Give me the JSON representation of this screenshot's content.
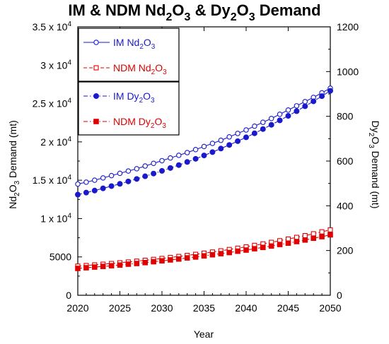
{
  "chart_data": {
    "type": "line",
    "title": {
      "parts": [
        {
          "t": "IM & NDM Nd"
        },
        {
          "t": "2",
          "sub": true
        },
        {
          "t": "O"
        },
        {
          "t": "3",
          "sub": true
        },
        {
          "t": " & Dy"
        },
        {
          "t": "2",
          "sub": true
        },
        {
          "t": "O"
        },
        {
          "t": "3",
          "sub": true
        },
        {
          "t": " Demand"
        }
      ]
    },
    "xlabel": "Year",
    "ylabel": {
      "parts": [
        {
          "t": "Nd"
        },
        {
          "t": "2",
          "sub": true
        },
        {
          "t": "O"
        },
        {
          "t": "3",
          "sub": true
        },
        {
          "t": " Demand (mt)"
        }
      ]
    },
    "y2label": {
      "parts": [
        {
          "t": "Dy"
        },
        {
          "t": "2",
          "sub": true
        },
        {
          "t": "O"
        },
        {
          "t": "3",
          "sub": true
        },
        {
          "t": " Demand (mt)"
        }
      ]
    },
    "xlim": [
      2020,
      2050
    ],
    "ylim": [
      0,
      35000
    ],
    "y2lim": [
      0,
      1200
    ],
    "xticks": [
      "2020",
      "2025",
      "2030",
      "2035",
      "2040",
      "2045",
      "2050"
    ],
    "yticks": [
      {
        "parts": [
          {
            "t": "0"
          }
        ]
      },
      {
        "parts": [
          {
            "t": "5000"
          }
        ]
      },
      {
        "parts": [
          {
            "t": "1 x 10"
          },
          {
            "t": "4",
            "sup": true
          }
        ]
      },
      {
        "parts": [
          {
            "t": "1.5 x 10"
          },
          {
            "t": "4",
            "sup": true
          }
        ]
      },
      {
        "parts": [
          {
            "t": "2 x 10"
          },
          {
            "t": "4",
            "sup": true
          }
        ]
      },
      {
        "parts": [
          {
            "t": "2.5 x 10"
          },
          {
            "t": "4",
            "sup": true
          }
        ]
      },
      {
        "parts": [
          {
            "t": "3 x 10"
          },
          {
            "t": "4",
            "sup": true
          }
        ]
      },
      {
        "parts": [
          {
            "t": "3.5 x 10"
          },
          {
            "t": "4",
            "sup": true
          }
        ]
      }
    ],
    "y2ticks": [
      "0",
      "200",
      "400",
      "600",
      "800",
      "1000",
      "1200"
    ],
    "legend_placement": "top-left",
    "series": [
      {
        "name": {
          "parts": [
            {
              "t": "IM Nd"
            },
            {
              "t": "2",
              "sub": true
            },
            {
              "t": "O"
            },
            {
              "t": "3",
              "sub": true
            }
          ]
        },
        "axis": "left",
        "color": "#1a1acc",
        "marker": "open-circle",
        "line": "solid",
        "x_start": 2020,
        "x_step": 1,
        "values": [
          14500,
          14750,
          15000,
          15300,
          15600,
          15900,
          16200,
          16500,
          16850,
          17200,
          17550,
          17900,
          18250,
          18600,
          19000,
          19400,
          19800,
          20200,
          20650,
          21100,
          21550,
          22050,
          22550,
          23050,
          23600,
          24150,
          24700,
          25250,
          25800,
          26400,
          27000
        ]
      },
      {
        "name": {
          "parts": [
            {
              "t": "NDM Nd"
            },
            {
              "t": "2",
              "sub": true
            },
            {
              "t": "O"
            },
            {
              "t": "3",
              "sub": true
            }
          ]
        },
        "axis": "left",
        "color": "#e00000",
        "marker": "open-square",
        "line": "dashed",
        "x_start": 2020,
        "x_step": 1,
        "values": [
          3800,
          3880,
          3960,
          4050,
          4140,
          4240,
          4340,
          4450,
          4560,
          4680,
          4800,
          4930,
          5060,
          5200,
          5340,
          5490,
          5640,
          5800,
          5970,
          6140,
          6320,
          6510,
          6700,
          6900,
          7110,
          7330,
          7550,
          7780,
          8020,
          8270,
          8530
        ]
      },
      {
        "name": {
          "parts": [
            {
              "t": "IM Dy"
            },
            {
              "t": "2",
              "sub": true
            },
            {
              "t": "O"
            },
            {
              "t": "3",
              "sub": true
            }
          ]
        },
        "axis": "right",
        "color": "#1a1acc",
        "marker": "filled-circle",
        "line": "dashdot",
        "x_start": 2020,
        "x_step": 1,
        "values": [
          450,
          459,
          468,
          478,
          488,
          498,
          509,
          520,
          532,
          544,
          556,
          569,
          582,
          596,
          610,
          625,
          640,
          656,
          672,
          689,
          706,
          724,
          743,
          762,
          782,
          802,
          823,
          845,
          867,
          890,
          914
        ]
      },
      {
        "name": {
          "parts": [
            {
              "t": "NDM Dy"
            },
            {
              "t": "2",
              "sub": true
            },
            {
              "t": "O"
            },
            {
              "t": "3",
              "sub": true
            }
          ]
        },
        "axis": "right",
        "color": "#e00000",
        "marker": "filled-square",
        "line": "dashdot",
        "x_start": 2020,
        "x_step": 1,
        "values": [
          120,
          123,
          126,
          129,
          132,
          135,
          139,
          142,
          146,
          150,
          154,
          158,
          162,
          167,
          171,
          176,
          181,
          186,
          191,
          197,
          202,
          208,
          214,
          220,
          227,
          233,
          240,
          247,
          255,
          262,
          270
        ]
      }
    ]
  }
}
